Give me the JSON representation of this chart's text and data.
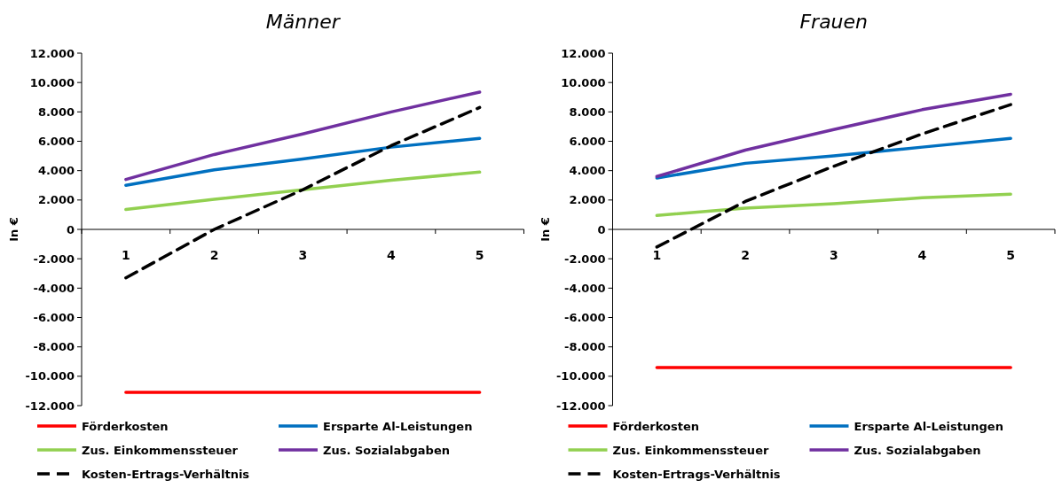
{
  "chart_data": [
    {
      "type": "line",
      "title": "Männer",
      "ylabel": "In €",
      "categories": [
        "1",
        "2",
        "3",
        "4",
        "5"
      ],
      "ylim": [
        -12000,
        12000
      ],
      "yticks": [
        {
          "value": -12000,
          "label": "-12.000"
        },
        {
          "value": -10000,
          "label": "-10.000"
        },
        {
          "value": -8000,
          "label": "-8.000"
        },
        {
          "value": -6000,
          "label": "-6.000"
        },
        {
          "value": -4000,
          "label": "-4.000"
        },
        {
          "value": -2000,
          "label": "-2.000"
        },
        0,
        {
          "value": 2000,
          "label": "2.000"
        },
        {
          "value": 4000,
          "label": "4.000"
        },
        {
          "value": 6000,
          "label": "6.000"
        },
        {
          "value": 8000,
          "label": "8.000"
        },
        {
          "value": 10000,
          "label": "10.000"
        },
        {
          "value": 12000,
          "label": "12.000"
        }
      ],
      "grid": false,
      "legend": "bottom",
      "marker": "none",
      "series": [
        {
          "name": "Förderkosten",
          "color": "#ff0000",
          "values": [
            -11100,
            -11100,
            -11100,
            -11100,
            -11100
          ]
        },
        {
          "name": "Ersparte Al-Leistungen",
          "color": "#0070c0",
          "values": [
            3000,
            4050,
            4800,
            5600,
            6200
          ]
        },
        {
          "name": "Zus. Einkommenssteuer",
          "color": "#92d050",
          "values": [
            1350,
            2050,
            2700,
            3350,
            3900
          ]
        },
        {
          "name": "Zus. Sozialabgaben",
          "color": "#7030a0",
          "values": [
            3400,
            5100,
            6500,
            8000,
            9350
          ]
        },
        {
          "name": "Kosten-Ertrags-Verhältnis",
          "color": "#000000",
          "line_style": "dashed",
          "values": [
            -3300,
            0,
            2700,
            5700,
            8300
          ]
        }
      ]
    },
    {
      "type": "line",
      "title": "Frauen",
      "ylabel": "In €",
      "categories": [
        "1",
        "2",
        "3",
        "4",
        "5"
      ],
      "ylim": [
        -12000,
        12000
      ],
      "yticks": [
        {
          "value": -12000,
          "label": "-12.000"
        },
        {
          "value": -10000,
          "label": "-10.000"
        },
        {
          "value": -8000,
          "label": "-8.000"
        },
        {
          "value": -6000,
          "label": "-6.000"
        },
        {
          "value": -4000,
          "label": "-4.000"
        },
        {
          "value": -2000,
          "label": "-2.000"
        },
        0,
        {
          "value": 2000,
          "label": "2.000"
        },
        {
          "value": 4000,
          "label": "4.000"
        },
        {
          "value": 6000,
          "label": "6.000"
        },
        {
          "value": 8000,
          "label": "8.000"
        },
        {
          "value": 10000,
          "label": "10.000"
        },
        {
          "value": 12000,
          "label": "12.000"
        }
      ],
      "grid": false,
      "legend": "bottom",
      "marker": "none",
      "series": [
        {
          "name": "Förderkosten",
          "color": "#ff0000",
          "values": [
            -9400,
            -9400,
            -9400,
            -9400,
            -9400
          ]
        },
        {
          "name": "Ersparte Al-Leistungen",
          "color": "#0070c0",
          "values": [
            3500,
            4500,
            5000,
            5600,
            6200
          ]
        },
        {
          "name": "Zus. Einkommenssteuer",
          "color": "#92d050",
          "values": [
            950,
            1450,
            1750,
            2150,
            2400
          ]
        },
        {
          "name": "Zus. Sozialabgaben",
          "color": "#7030a0",
          "values": [
            3600,
            5400,
            6800,
            8150,
            9200
          ]
        },
        {
          "name": "Kosten-Ertrags-Verhältnis",
          "color": "#000000",
          "line_style": "dashed",
          "values": [
            -1200,
            1900,
            4300,
            6500,
            8500
          ]
        }
      ]
    }
  ]
}
